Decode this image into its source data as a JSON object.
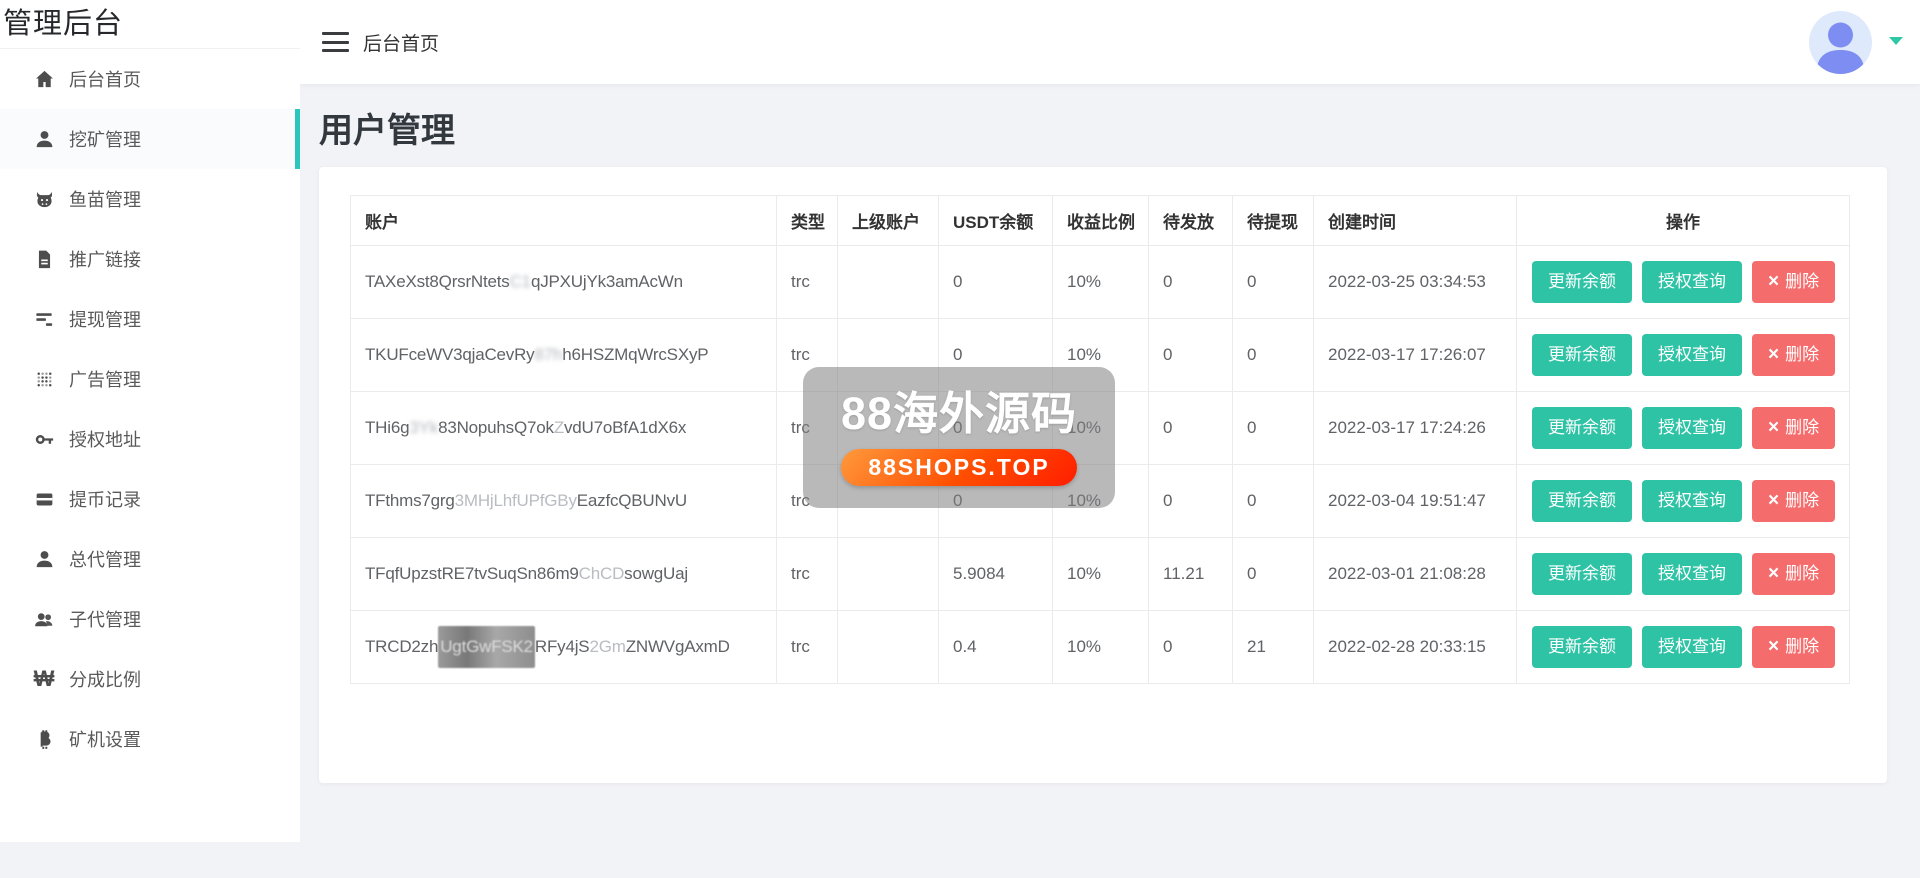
{
  "app": {
    "title": "管理后台"
  },
  "colors": {
    "teal": "#2fc3a6",
    "teal-bar": "#2dc6bd",
    "red": "#f56c6c",
    "bg": "#f2f3f7"
  },
  "sidebar": {
    "items": [
      {
        "key": "home",
        "icon": "home-icon",
        "label": "后台首页",
        "active": false
      },
      {
        "key": "mining",
        "icon": "user-icon",
        "label": "挖矿管理",
        "active": true
      },
      {
        "key": "fry",
        "icon": "cow-icon",
        "label": "鱼苗管理",
        "active": false
      },
      {
        "key": "promo-link",
        "icon": "document-icon",
        "label": "推广链接",
        "active": false
      },
      {
        "key": "withdraw",
        "icon": "list-icon",
        "label": "提现管理",
        "active": false
      },
      {
        "key": "ads",
        "icon": "grid-dots-icon",
        "label": "广告管理",
        "active": false
      },
      {
        "key": "auth-address",
        "icon": "key-icon",
        "label": "授权地址",
        "active": false
      },
      {
        "key": "withdraw-record",
        "icon": "card-icon",
        "label": "提币记录",
        "active": false
      },
      {
        "key": "general-agent",
        "icon": "user-icon",
        "label": "总代管理",
        "active": false
      },
      {
        "key": "sub-agent",
        "icon": "users-icon",
        "label": "子代管理",
        "active": false
      },
      {
        "key": "share-ratio",
        "icon": "won-icon",
        "label": "分成比例",
        "active": false
      },
      {
        "key": "miner-settings",
        "icon": "bitcoin-icon",
        "label": "矿机设置",
        "active": false
      }
    ]
  },
  "topbar": {
    "breadcrumb": "后台首页"
  },
  "page": {
    "title": "用户管理"
  },
  "table": {
    "headers": [
      "账户",
      "类型",
      "上级账户",
      "USDT余额",
      "收益比例",
      "待发放",
      "待提现",
      "创建时间",
      "操作"
    ],
    "actions": {
      "update": "更新余额",
      "auth": "授权查询",
      "delete": "删除",
      "delete_icon": "×"
    },
    "rows": [
      {
        "account_parts": [
          {
            "t": "TAXeXst8QrsrNtets",
            "s": "clear"
          },
          {
            "t": "C1",
            "s": "blur"
          },
          {
            "t": "qJPXUjYk3amAcWn",
            "s": "clear"
          }
        ],
        "type": "trc",
        "parent": "",
        "usdt": "0",
        "ratio": "10%",
        "pending_release": "0",
        "pending_withdraw": "0",
        "created": "2022-03-25 03:34:53"
      },
      {
        "account_parts": [
          {
            "t": "TKUFceWV3qjaCevRy",
            "s": "clear"
          },
          {
            "t": "87h",
            "s": "blur"
          },
          {
            "t": "h6HSZMqWrcSXyP",
            "s": "clear"
          }
        ],
        "type": "trc",
        "parent": "",
        "usdt": "0",
        "ratio": "10%",
        "pending_release": "0",
        "pending_withdraw": "0",
        "created": "2022-03-17 17:26:07"
      },
      {
        "account_parts": [
          {
            "t": "THi6g",
            "s": "clear"
          },
          {
            "t": "3Yk",
            "s": "blur"
          },
          {
            "t": "83NopuhsQ7ok",
            "s": "clear"
          },
          {
            "t": "Z",
            "s": "faint"
          },
          {
            "t": "vdU7oBfA1dX6x",
            "s": "clear"
          }
        ],
        "type": "trc",
        "parent": "",
        "usdt": "0",
        "ratio": "10%",
        "pending_release": "0",
        "pending_withdraw": "0",
        "created": "2022-03-17 17:24:26"
      },
      {
        "account_parts": [
          {
            "t": "TFthms7grg",
            "s": "clear"
          },
          {
            "t": "3MHjLhfUPfGBy",
            "s": "faint"
          },
          {
            "t": "EazfcQBUNvU",
            "s": "clear"
          }
        ],
        "type": "trc",
        "parent": "",
        "usdt": "0",
        "ratio": "10%",
        "pending_release": "0",
        "pending_withdraw": "0",
        "created": "2022-03-04 19:51:47"
      },
      {
        "account_parts": [
          {
            "t": "TFqfUpzstRE7tvSuqSn86m9",
            "s": "clear"
          },
          {
            "t": "ChCD",
            "s": "faint"
          },
          {
            "t": "sowgUaj",
            "s": "clear"
          }
        ],
        "type": "trc",
        "parent": "",
        "usdt": "5.9084",
        "ratio": "10%",
        "pending_release": "11.21",
        "pending_withdraw": "0",
        "created": "2022-03-01 21:08:28"
      },
      {
        "account_parts": [
          {
            "t": "TRCD2zh",
            "s": "clear"
          },
          {
            "t": "UgtGwFSK2",
            "s": "mosaic"
          },
          {
            "t": "RFy4jS",
            "s": "clear"
          },
          {
            "t": "2Gm",
            "s": "faint"
          },
          {
            "t": "ZNWVgAxmD",
            "s": "clear"
          }
        ],
        "type": "trc",
        "parent": "",
        "usdt": "0.4",
        "ratio": "10%",
        "pending_release": "0",
        "pending_withdraw": "21",
        "created": "2022-02-28 20:33:15"
      }
    ]
  },
  "watermark": {
    "title": "88海外源码",
    "badge": "88SHOPS.TOP"
  }
}
